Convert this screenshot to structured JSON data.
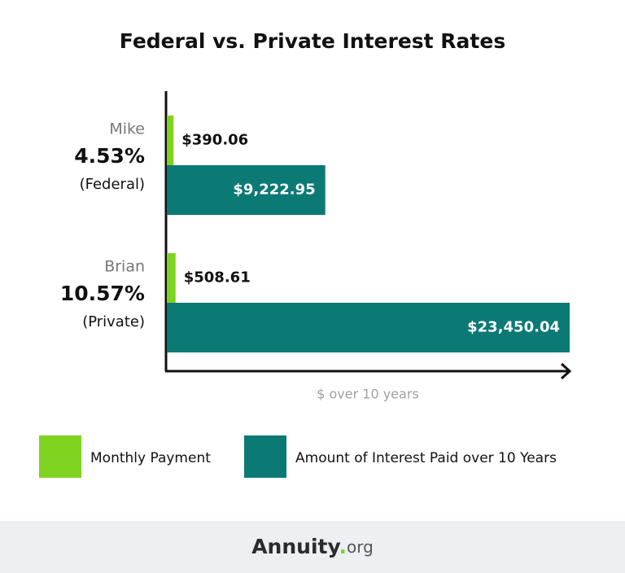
{
  "chart_data": {
    "type": "hbar",
    "title": "Federal vs. Private Interest Rates",
    "categories": [
      "Mike",
      "Brian"
    ],
    "rates": [
      "4.53%",
      "10.57%"
    ],
    "loan_types": [
      "(Federal)",
      "(Private)"
    ],
    "x_label": "$ over 10 years",
    "xlim": [
      0,
      23450.04
    ],
    "series": [
      {
        "name": "Monthly Payment",
        "color": "#7ed321",
        "values": [
          390.06,
          508.61
        ],
        "value_labels": [
          "$390.06",
          "$508.61"
        ]
      },
      {
        "name": "Amount of Interest Paid over 10 Years",
        "color": "#0b7a75",
        "values": [
          9222.95,
          23450.04
        ],
        "value_labels": [
          "$9,222.95",
          "$23,450.04"
        ]
      }
    ]
  },
  "footer": {
    "brand": "Annuity",
    "dot": ".",
    "tld": "org"
  }
}
